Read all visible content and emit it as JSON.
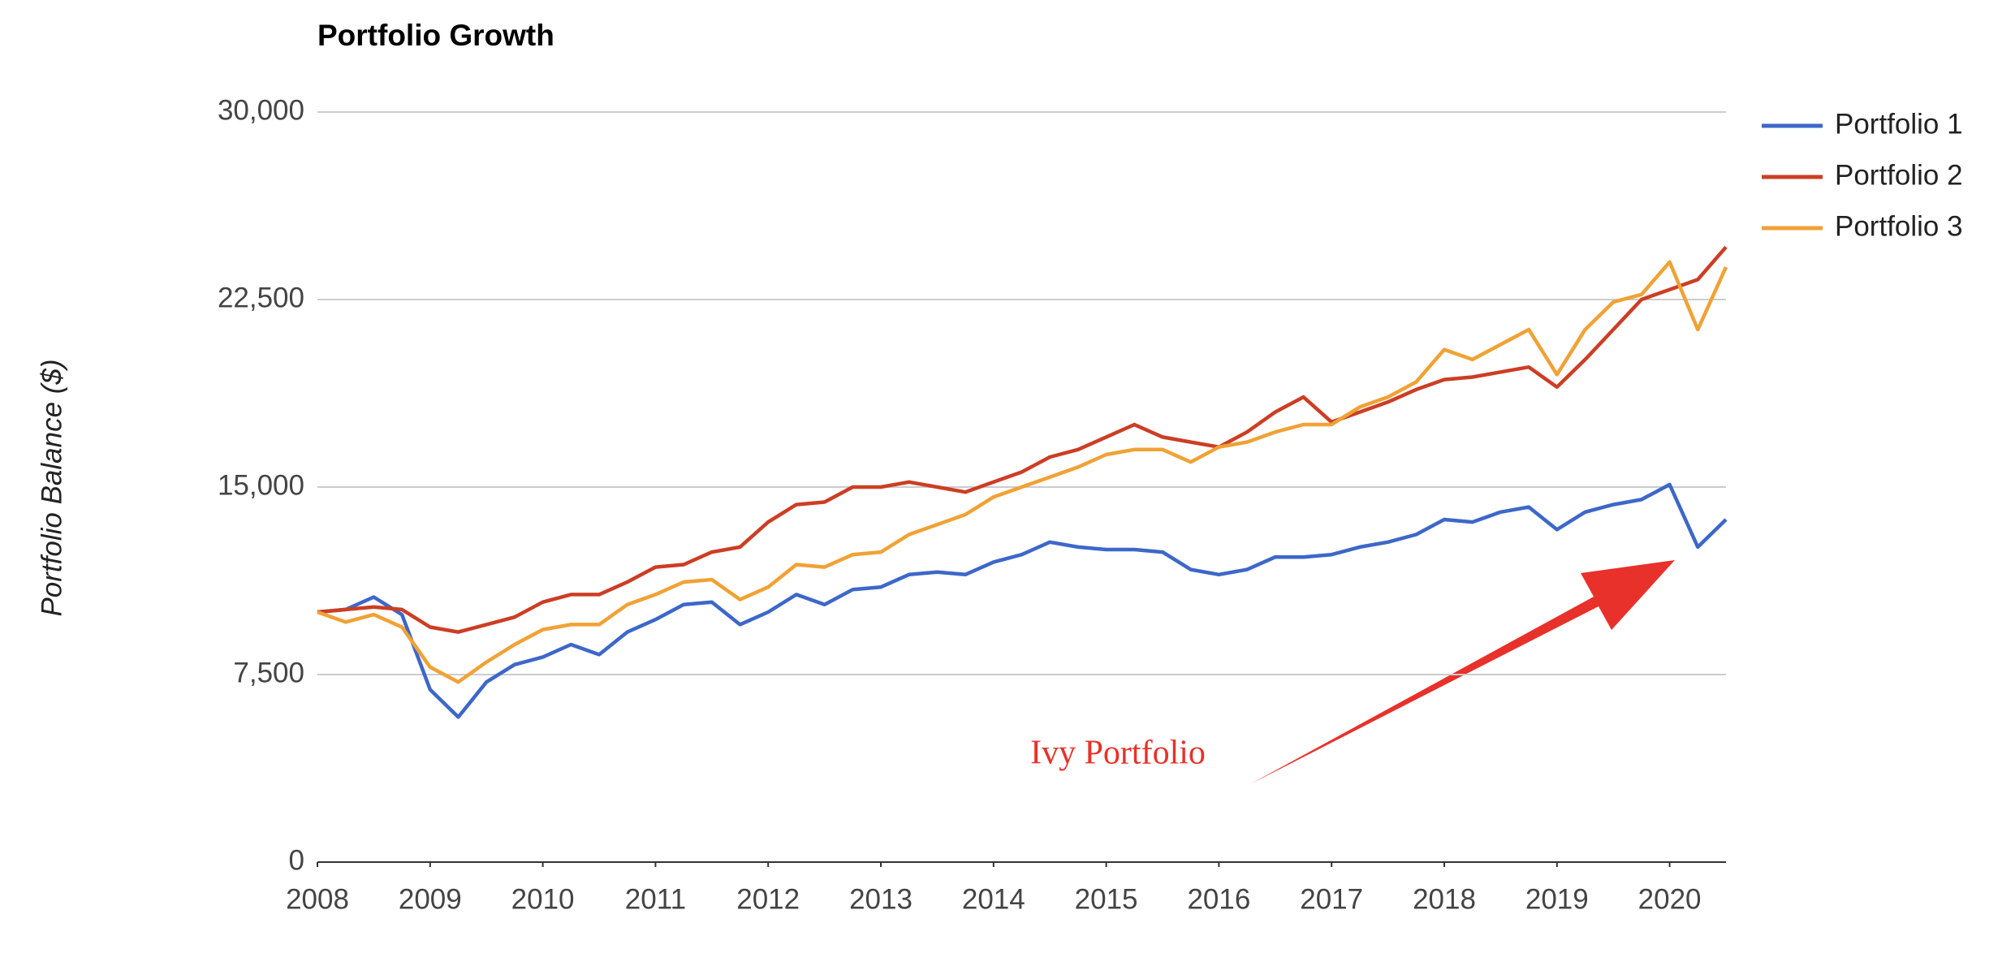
{
  "chart_data": {
    "type": "line",
    "title": "Portfolio Growth",
    "y_label": "Portfolio Balance ($)",
    "annotation": "Ivy Portfolio",
    "x": [
      2008,
      2008.25,
      2008.5,
      2008.75,
      2009,
      2009.25,
      2009.5,
      2009.75,
      2010,
      2010.25,
      2010.5,
      2010.75,
      2011,
      2011.25,
      2011.5,
      2011.75,
      2012,
      2012.25,
      2012.5,
      2012.75,
      2013,
      2013.25,
      2013.5,
      2013.75,
      2014,
      2014.25,
      2014.5,
      2014.75,
      2015,
      2015.25,
      2015.5,
      2015.75,
      2016,
      2016.25,
      2016.5,
      2016.75,
      2017,
      2017.25,
      2017.5,
      2017.75,
      2018,
      2018.25,
      2018.5,
      2018.75,
      2019,
      2019.25,
      2019.5,
      2019.75,
      2020,
      2020.25,
      2020.5
    ],
    "series": [
      {
        "name": "Portfolio 1",
        "color": "#3d67c9",
        "values": [
          10000,
          10100,
          10600,
          9900,
          6900,
          5800,
          7200,
          7900,
          8200,
          8700,
          8300,
          9200,
          9700,
          10300,
          10400,
          9500,
          10000,
          10700,
          10300,
          10900,
          11000,
          11500,
          11600,
          11500,
          12000,
          12300,
          12800,
          12600,
          12500,
          12500,
          12400,
          11700,
          11500,
          11700,
          12200,
          12200,
          12300,
          12600,
          12800,
          13100,
          13700,
          13600,
          14000,
          14200,
          13300,
          14000,
          14300,
          14500,
          15100,
          12600,
          13700
        ]
      },
      {
        "name": "Portfolio 2",
        "color": "#cc3e24",
        "values": [
          10000,
          10100,
          10200,
          10100,
          9400,
          9200,
          9500,
          9800,
          10400,
          10700,
          10700,
          11200,
          11800,
          11900,
          12400,
          12600,
          13600,
          14300,
          14400,
          15000,
          15000,
          15200,
          15000,
          14800,
          15200,
          15600,
          16200,
          16500,
          17000,
          17500,
          17000,
          16800,
          16600,
          17200,
          18000,
          18600,
          17600,
          18000,
          18400,
          18900,
          19300,
          19400,
          19600,
          19800,
          19000,
          20100,
          21300,
          22500,
          22900,
          23300,
          24600
        ]
      },
      {
        "name": "Portfolio 3",
        "color": "#f0a235",
        "values": [
          10000,
          9600,
          9900,
          9400,
          7800,
          7200,
          8000,
          8700,
          9300,
          9500,
          9500,
          10300,
          10700,
          11200,
          11300,
          10500,
          11000,
          11900,
          11800,
          12300,
          12400,
          13100,
          13500,
          13900,
          14600,
          15000,
          15400,
          15800,
          16300,
          16500,
          16500,
          16000,
          16600,
          16800,
          17200,
          17500,
          17500,
          18200,
          18600,
          19200,
          20500,
          20100,
          20700,
          21300,
          19500,
          21300,
          22400,
          22700,
          24000,
          21300,
          23800
        ]
      }
    ],
    "xlim": [
      2008,
      2020.5
    ],
    "xticks": [
      2008,
      2009,
      2010,
      2011,
      2012,
      2013,
      2014,
      2015,
      2016,
      2017,
      2018,
      2019,
      2020
    ],
    "ylim": [
      0,
      30000
    ],
    "yticks": [
      0,
      {
        "value": 7500,
        "label": "7,500"
      },
      {
        "value": 15000,
        "label": "15,000"
      },
      {
        "value": 22500,
        "label": "22,500"
      },
      {
        "value": 30000,
        "label": "30,000"
      }
    ],
    "grid": true,
    "legend": "right"
  }
}
